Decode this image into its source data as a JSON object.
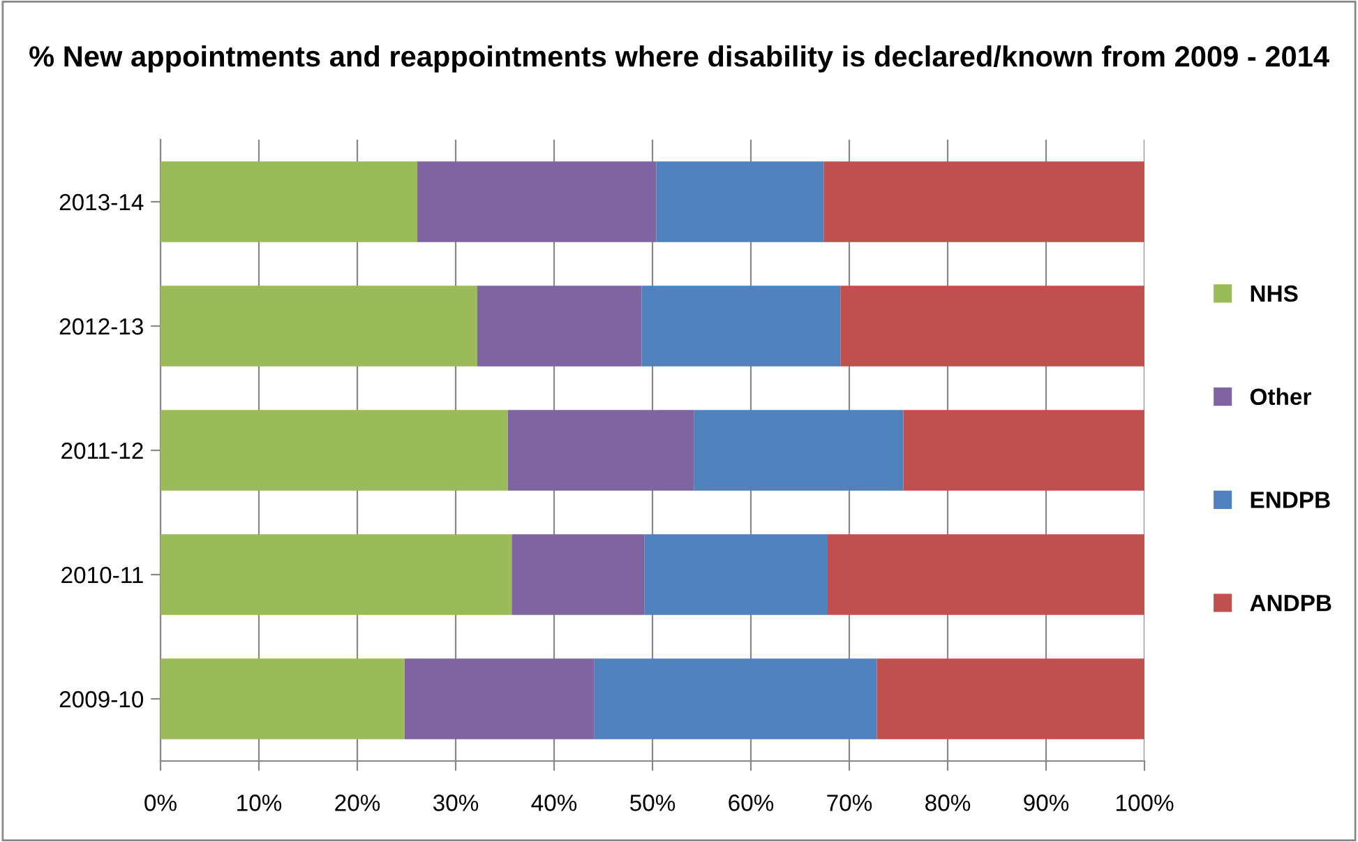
{
  "chart_data": {
    "type": "bar",
    "orientation": "horizontal",
    "stacked": true,
    "title": "% New appointments and reappointments where disability is declared/known from 2009 - 2014",
    "categories": [
      "2013-14",
      "2012-13",
      "2011-12",
      "2010-11",
      "2009-10"
    ],
    "series": [
      {
        "name": "NHS",
        "color": "#9bbb59",
        "values": [
          26.1,
          32.2,
          35.3,
          35.7,
          24.8
        ]
      },
      {
        "name": "Other",
        "color": "#8064a2",
        "values": [
          24.3,
          16.7,
          18.9,
          13.5,
          19.3
        ]
      },
      {
        "name": "ENDPB",
        "color": "#4f81bd",
        "values": [
          17.0,
          20.2,
          21.3,
          18.6,
          28.7
        ]
      },
      {
        "name": "ANDPB",
        "color": "#c0504d",
        "values": [
          32.6,
          30.9,
          24.5,
          32.2,
          27.2
        ]
      }
    ],
    "xlim": [
      0,
      100
    ],
    "xticks": [
      {
        "value": 0,
        "label": "0%"
      },
      {
        "value": 10,
        "label": "10%"
      },
      {
        "value": 20,
        "label": "20%"
      },
      {
        "value": 30,
        "label": "30%"
      },
      {
        "value": 40,
        "label": "40%"
      },
      {
        "value": 50,
        "label": "50%"
      },
      {
        "value": 60,
        "label": "60%"
      },
      {
        "value": 70,
        "label": "70%"
      },
      {
        "value": 80,
        "label": "80%"
      },
      {
        "value": 90,
        "label": "90%"
      },
      {
        "value": 100,
        "label": "100%"
      }
    ],
    "grid": "x",
    "legend": "right"
  }
}
